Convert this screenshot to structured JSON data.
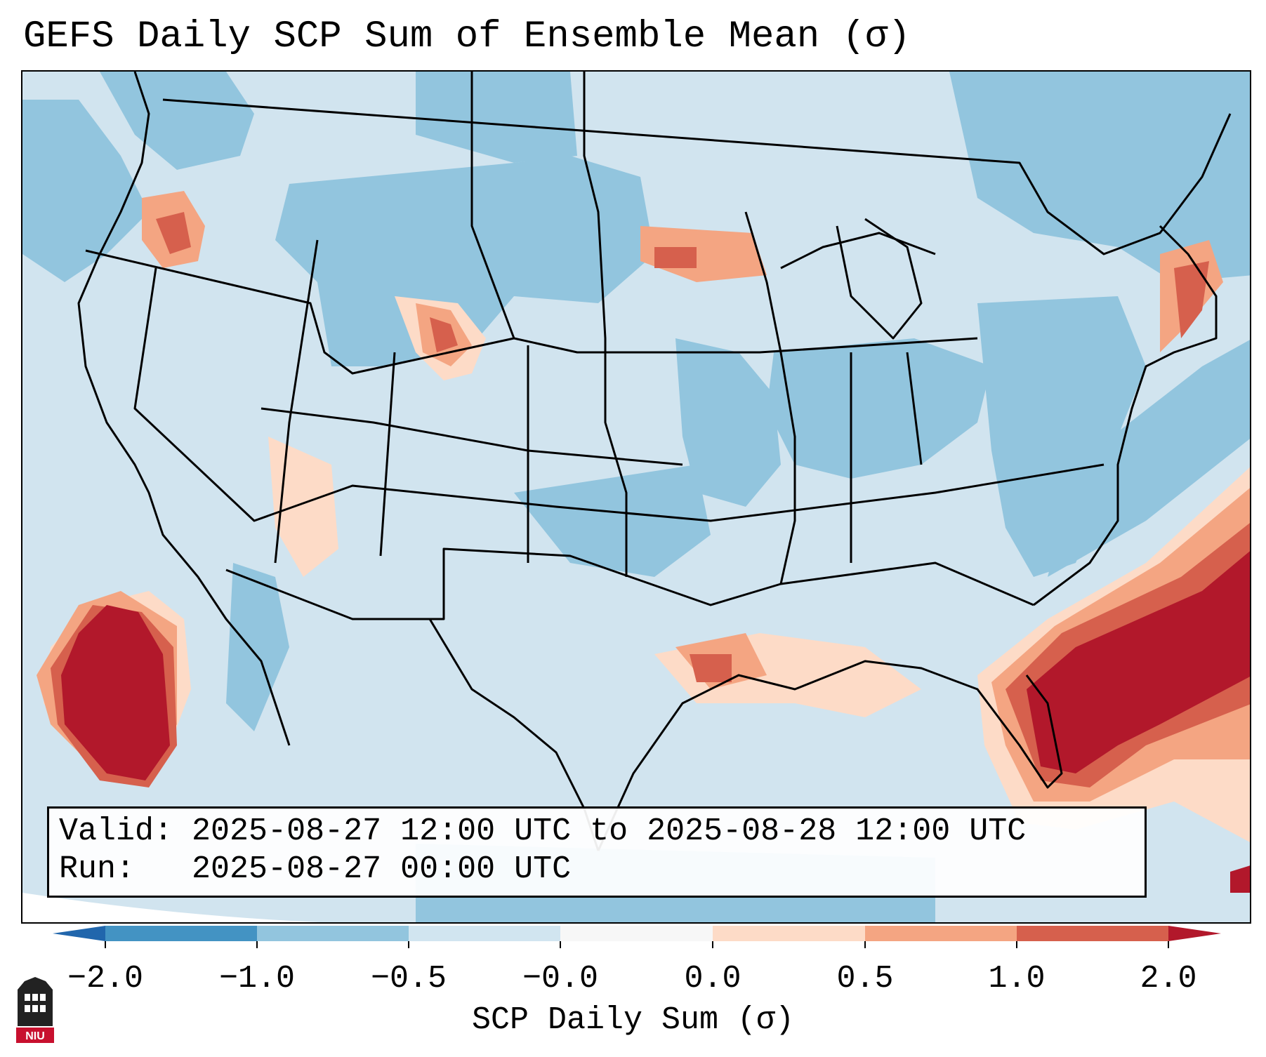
{
  "title": "GEFS Daily SCP Sum of Ensemble Mean (σ)",
  "info": {
    "valid_label": "Valid:",
    "valid_value": "2025-08-27 12:00 UTC to 2025-08-28 12:00 UTC",
    "run_label": "Run:",
    "run_value": "2025-08-27 00:00 UTC"
  },
  "colorbar": {
    "label": "SCP Daily Sum (σ)",
    "ticks": [
      "−2.0",
      "−1.0",
      "−0.5",
      "−0.0",
      "0.0",
      "0.5",
      "1.0",
      "2.0"
    ],
    "bin_colors": [
      "#4393c3",
      "#92c5de",
      "#d1e5f0",
      "#fddbc7",
      "#f4a582",
      "#d6604d"
    ],
    "under_color": "#2166ac",
    "over_color": "#b2182b"
  },
  "map_colors": {
    "background": "#d1e4ef",
    "light_blue": "#92c5de",
    "very_light_blue": "#d1e5f0",
    "light_red": "#fddbc7",
    "mid_red": "#f4a582",
    "red": "#d6604d",
    "dark_red": "#b2182b",
    "border": "#000000"
  },
  "logo": {
    "text": "NIU"
  }
}
